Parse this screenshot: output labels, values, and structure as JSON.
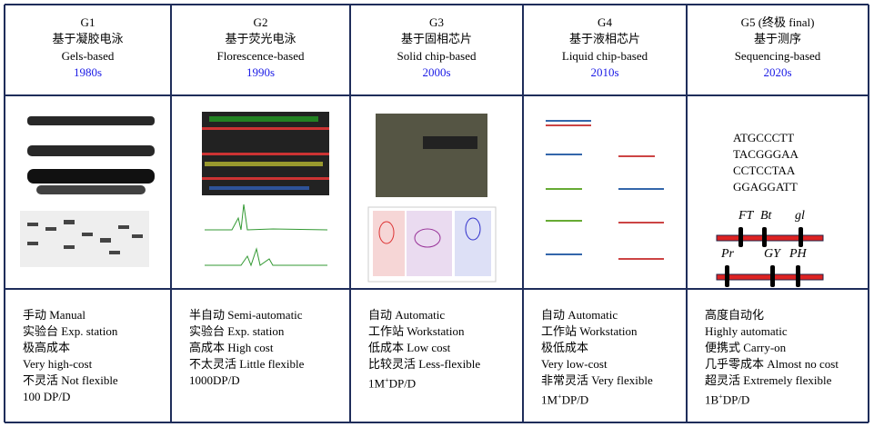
{
  "columns": [
    {
      "gen": "G1",
      "name_zh": "基于凝胶电泳",
      "name_en": "Gels-based",
      "decade": "1980s",
      "features": [
        "手动 Manual",
        "实验台 Exp. station",
        "极高成本",
        "Very high-cost",
        "不灵活 Not flexible",
        "100 DP/D"
      ]
    },
    {
      "gen": "G2",
      "name_zh": "基于荧光电泳",
      "name_en": "Florescence-based",
      "decade": "1990s",
      "features": [
        "半自动 Semi-automatic",
        "实验台 Exp. station",
        "高成本 High cost",
        "不太灵活 Little flexible",
        "1000DP/D"
      ]
    },
    {
      "gen": "G3",
      "name_zh": "基于固相芯片",
      "name_en": "Solid chip-based",
      "decade": "2000s",
      "features": [
        "自动 Automatic",
        "工作站 Workstation",
        "低成本 Low cost",
        "比较灵活 Less-flexible",
        {
          "base": "1M",
          "sup": "+",
          "tail": "DP/D"
        }
      ]
    },
    {
      "gen": "G4",
      "name_zh": "基于液相芯片",
      "name_en": "Liquid chip-based",
      "decade": "2010s",
      "features": [
        "自动 Automatic",
        "工作站 Workstation",
        "极低成本",
        "Very low-cost",
        "非常灵活 Very flexible",
        {
          "base": "1M",
          "sup": "+",
          "tail": "DP/D"
        }
      ]
    },
    {
      "gen": "G5 (终极 final)",
      "name_zh": "基于测序",
      "name_en": "Sequencing-based",
      "decade": "2020s",
      "features": [
        "高度自动化",
        "Highly automatic",
        "便携式 Carry-on",
        "几乎零成本 Almost no cost",
        "超灵活 Extremely flexible",
        {
          "base": "1B",
          "sup": "+",
          "tail": "DP/D"
        }
      ]
    }
  ],
  "g5_image": {
    "sequences": [
      "ATGCCCTT",
      "TACGGGAA",
      "CCTCCTAA",
      "GGAGGATT"
    ],
    "chromosome_1": [
      "FT",
      "Bt",
      "gl"
    ],
    "chromosome_2": [
      "Pr",
      "GY",
      "PH"
    ]
  }
}
